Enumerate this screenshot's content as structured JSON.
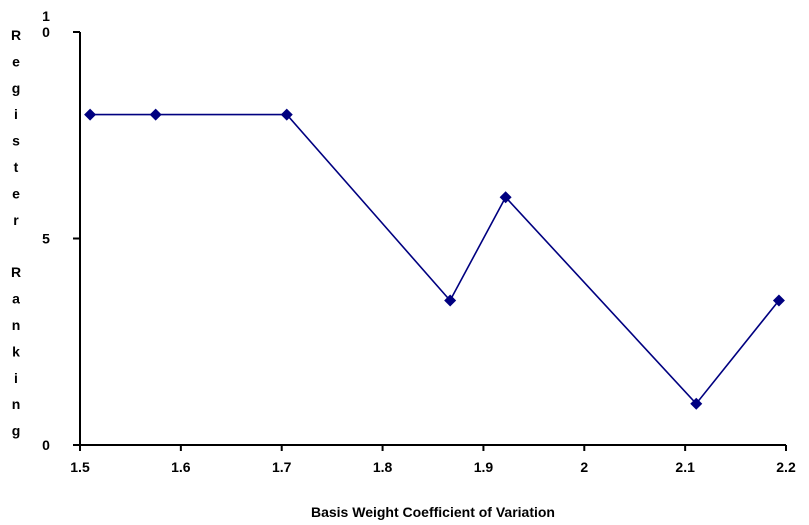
{
  "chart_data": {
    "type": "line",
    "title": "",
    "xlabel": "Basis Weight Coefficient of Variation",
    "ylabel": "Register Ranking",
    "xlim": [
      1.5,
      2.2
    ],
    "ylim": [
      0,
      10
    ],
    "x_ticks": [
      "1.5",
      "1.6",
      "1.7",
      "1.8",
      "1.9",
      "2",
      "2.1",
      "2.2"
    ],
    "y_ticks": [
      "0",
      "5",
      "10"
    ],
    "grid": false,
    "legend": "none",
    "series": [
      {
        "x": [
          1.51,
          1.575,
          1.705,
          1.867,
          1.922,
          2.111,
          2.193
        ],
        "y": [
          8,
          8,
          8,
          3.5,
          6,
          1,
          3.5
        ],
        "color": "#000080",
        "marker": "diamond"
      }
    ]
  }
}
